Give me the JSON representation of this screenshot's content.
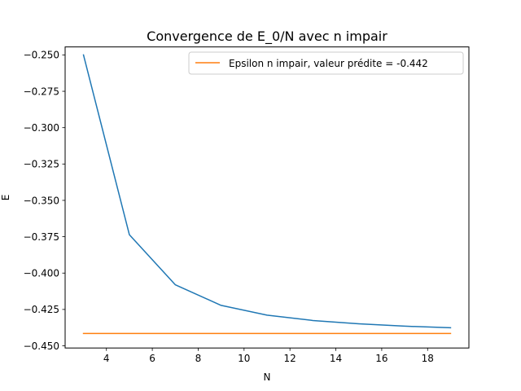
{
  "chart_data": {
    "type": "line",
    "title": "Convergence de E_0/N avec n impair",
    "xlabel": "N",
    "ylabel": "E",
    "xlim": [
      2.2,
      19.8
    ],
    "ylim": [
      -0.4515,
      -0.2445
    ],
    "xticks": [
      4,
      6,
      8,
      10,
      12,
      14,
      16,
      18
    ],
    "yticks": [
      -0.25,
      -0.275,
      -0.3,
      -0.325,
      -0.35,
      -0.375,
      -0.4,
      -0.425,
      -0.45
    ],
    "ytick_labels": [
      "−0.250",
      "−0.275",
      "−0.300",
      "−0.325",
      "−0.350",
      "−0.375",
      "−0.400",
      "−0.425",
      "−0.450"
    ],
    "grid": false,
    "legend_position": "top-right",
    "series": [
      {
        "color": "#1f77b4",
        "x": [
          3,
          5,
          7,
          9,
          11,
          13,
          15,
          17,
          19
        ],
        "y": [
          -0.25,
          -0.3736,
          -0.408,
          -0.4222,
          -0.4289,
          -0.4326,
          -0.4349,
          -0.4365,
          -0.4376
        ]
      },
      {
        "name": "Epsilon n impair, valeur prédite = -0.442",
        "color": "#ff7f0e",
        "x": [
          3,
          19
        ],
        "y": [
          -0.4415,
          -0.4415
        ]
      }
    ]
  }
}
